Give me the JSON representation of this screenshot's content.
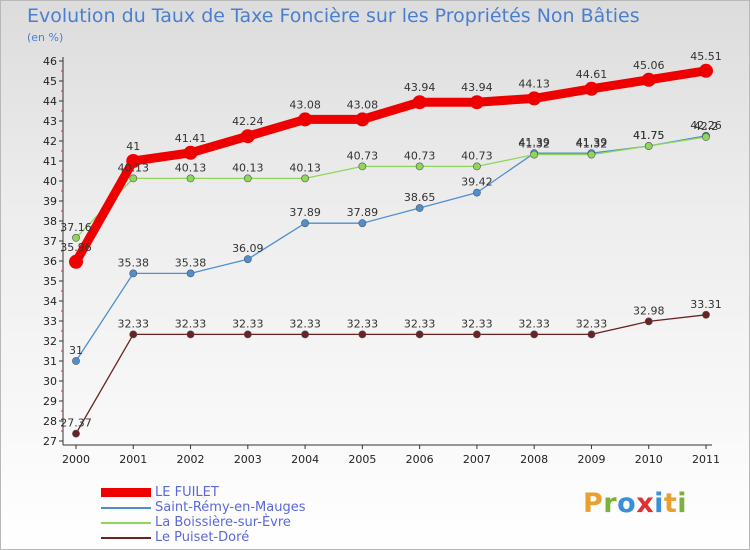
{
  "chart_data": {
    "type": "line",
    "title": "Evolution du Taux de Taxe Foncière sur les Propriétés Non Bâties",
    "subtitle": "(en %)",
    "xlabel": "",
    "ylabel": "(en %)",
    "ylim": [
      27,
      46
    ],
    "grid": false,
    "legend_position": "bottom-left",
    "x": [
      "2000",
      "2001",
      "2002",
      "2003",
      "2004",
      "2005",
      "2006",
      "2007",
      "2008",
      "2009",
      "2010",
      "2011"
    ],
    "yticks": [
      27,
      28,
      29,
      30,
      31,
      32,
      33,
      34,
      35,
      36,
      37,
      38,
      39,
      40,
      41,
      42,
      43,
      44,
      45,
      46
    ],
    "series": [
      {
        "name": "Le Puiset-Doré",
        "color": "#6b2222",
        "values": [
          27.37,
          32.33,
          32.33,
          32.33,
          32.33,
          32.33,
          32.33,
          32.33,
          32.33,
          32.33,
          32.98,
          33.31
        ],
        "labels": [
          "27.37",
          "32.33",
          "32.33",
          "32.33",
          "32.33",
          "32.33",
          "32.33",
          "32.33",
          "32.33",
          "32.33",
          "32.98",
          "33.31"
        ]
      },
      {
        "name": "Saint-Rémy-en-Mauges",
        "color": "#4f8fcf",
        "values": [
          31,
          35.38,
          35.38,
          36.09,
          37.89,
          37.89,
          38.65,
          39.42,
          41.39,
          41.39,
          41.75,
          42.26
        ],
        "labels": [
          "31",
          "35.38",
          "35.38",
          "36.09",
          "37.89",
          "37.89",
          "38.65",
          "39.42",
          "41.39",
          "41.39",
          "41.75",
          "42.26"
        ]
      },
      {
        "name": "La Boissière-sur-Èvre",
        "color": "#8fd65a",
        "values": [
          37.16,
          40.13,
          40.13,
          40.13,
          40.13,
          40.73,
          40.73,
          40.73,
          41.32,
          41.32,
          41.75,
          42.2
        ],
        "labels": [
          "37.16",
          "40.13",
          "40.13",
          "40.13",
          "40.13",
          "40.73",
          "40.73",
          "40.73",
          "41.32",
          "41.32",
          "41.75",
          "42.2"
        ]
      },
      {
        "name": "LE FUILET",
        "color": "#ee0000",
        "values": [
          35.96,
          41,
          41.41,
          42.24,
          43.08,
          43.08,
          43.94,
          43.94,
          44.13,
          44.61,
          45.06,
          45.51
        ],
        "labels": [
          "35.96",
          "41",
          "41.41",
          "42.24",
          "43.08",
          "43.08",
          "43.94",
          "43.94",
          "44.13",
          "44.61",
          "45.06",
          "45.51"
        ]
      }
    ]
  },
  "legend": [
    {
      "label": "LE FUILET",
      "color": "#ee0000"
    },
    {
      "label": "Saint-Rémy-en-Mauges",
      "color": "#4f8fcf"
    },
    {
      "label": "La Boissière-sur-Èvre",
      "color": "#8fd65a"
    },
    {
      "label": "Le Puiset-Doré",
      "color": "#6b2222"
    }
  ],
  "brand": {
    "letters": [
      "P",
      "r",
      "o",
      "x",
      "i",
      "t",
      "i"
    ],
    "colors": [
      "#e8a030",
      "#7bb33a",
      "#3a8fd8",
      "#e03030",
      "#3a8fd8",
      "#e8a030",
      "#7bb33a"
    ]
  }
}
